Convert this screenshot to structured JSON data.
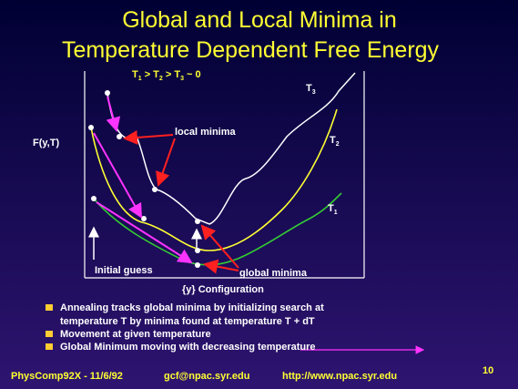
{
  "title": [
    "Global and Local Minima in",
    "Temperature Dependent Free Energy"
  ],
  "condition": [
    "T",
    "1",
    " > T",
    "2",
    " > T",
    "3",
    " ~ 0"
  ],
  "curves": [
    {
      "base": "T",
      "sub": "3"
    },
    {
      "base": "T",
      "sub": "2"
    },
    {
      "base": "T",
      "sub": "1"
    }
  ],
  "y_axis_label": "F(y,T)",
  "x_axis_label": "{y} Configuration",
  "annotations": {
    "local": "local minima",
    "global": "global minima",
    "initial": "Initial guess"
  },
  "bullets": [
    [
      "Annealing tracks global minima by initializing search at",
      "temperature T by minima found at temperature T + dT"
    ],
    [
      "Movement at given temperature"
    ],
    [
      "Global Minimum moving with decreasing temperature"
    ]
  ],
  "footer": {
    "course": "PhysComp92X - 11/6/92",
    "email": "gcf@npac.syr.edu",
    "url": "http://www.npac.syr.edu",
    "page": "10"
  }
}
